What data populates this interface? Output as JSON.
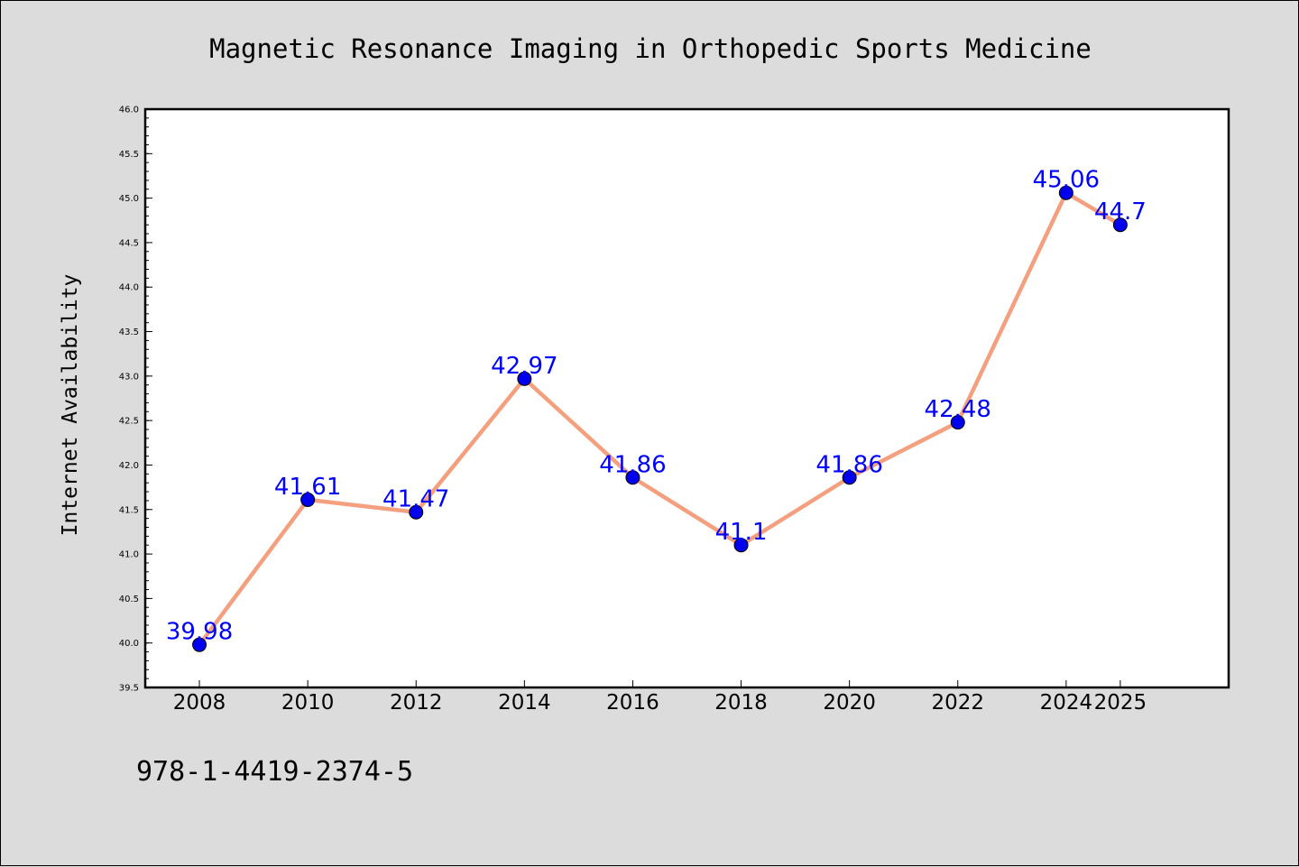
{
  "chart_data": {
    "type": "line",
    "title": "Magnetic Resonance Imaging in Orthopedic Sports Medicine",
    "xlabel": "",
    "ylabel": "Internet Availability",
    "ylim": [
      39.5,
      46.0
    ],
    "yticks": [
      39.5,
      40.0,
      40.5,
      41.0,
      41.5,
      42.0,
      42.5,
      43.0,
      43.5,
      44.0,
      44.5,
      45.0,
      45.5,
      46.0
    ],
    "ytick_labels": [
      "39.5",
      "40.0",
      "40.5",
      "41.0",
      "41.5",
      "42.0",
      "42.5",
      "43.0",
      "43.5",
      "44.0",
      "44.5",
      "45.0",
      "45.5",
      "46.0"
    ],
    "categories": [
      "2008",
      "2010",
      "2012",
      "2014",
      "2016",
      "2018",
      "2020",
      "2022",
      "2024",
      "2025"
    ],
    "values": [
      39.98,
      41.61,
      41.47,
      42.97,
      41.86,
      41.1,
      41.86,
      42.48,
      45.06,
      44.7
    ],
    "data_labels": [
      "39.98",
      "41.61",
      "41.47",
      "42.97",
      "41.86",
      "41.1",
      "41.86",
      "42.48",
      "45.06",
      "44.7"
    ],
    "grid": false,
    "legend": "none",
    "colors": {
      "line": "#f4a07e",
      "marker": "#0000ee",
      "label": "#0000ff",
      "plot_background": "#ffffff",
      "figure_background": "#dcdcdc"
    }
  },
  "footer_text": "978-1-4419-2374-5"
}
